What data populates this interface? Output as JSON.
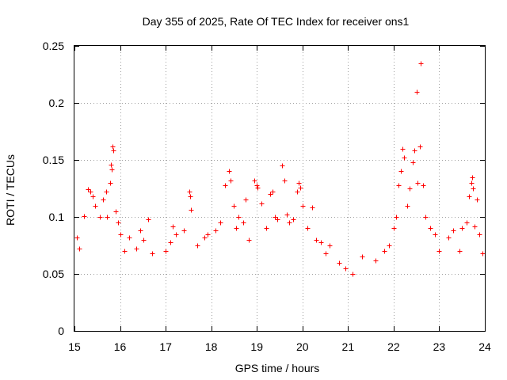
{
  "chart_data": {
    "type": "scatter",
    "title": "Day 355 of 2025, Rate Of TEC Index for receiver ons1",
    "xlabel": "GPS time / hours",
    "ylabel": "ROTI / TECUs",
    "xlim": [
      15,
      24
    ],
    "ylim": [
      0,
      0.25
    ],
    "xticks": [
      15,
      16,
      17,
      18,
      19,
      20,
      21,
      22,
      23,
      24
    ],
    "xtick_labels": [
      "15",
      "16",
      "17",
      "18",
      "19",
      "20",
      "21",
      "22",
      "23",
      "24"
    ],
    "yticks": [
      0,
      0.05,
      0.1,
      0.15,
      0.2,
      0.25
    ],
    "ytick_labels": [
      "0",
      "0.05",
      "0.1",
      "0.15",
      "0.2",
      "0.25"
    ],
    "grid": true,
    "marker": "+",
    "color": "#ff0000",
    "series": [
      {
        "name": "ROTI",
        "points": [
          [
            15.05,
            0.082
          ],
          [
            15.1,
            0.072
          ],
          [
            15.2,
            0.101
          ],
          [
            15.3,
            0.124
          ],
          [
            15.35,
            0.122
          ],
          [
            15.4,
            0.118
          ],
          [
            15.45,
            0.11
          ],
          [
            15.55,
            0.1
          ],
          [
            15.62,
            0.115
          ],
          [
            15.7,
            0.122
          ],
          [
            15.72,
            0.1
          ],
          [
            15.78,
            0.13
          ],
          [
            15.8,
            0.146
          ],
          [
            15.82,
            0.142
          ],
          [
            15.84,
            0.162
          ],
          [
            15.86,
            0.158
          ],
          [
            15.9,
            0.105
          ],
          [
            15.95,
            0.095
          ],
          [
            16.0,
            0.085
          ],
          [
            16.1,
            0.07
          ],
          [
            16.2,
            0.082
          ],
          [
            16.35,
            0.072
          ],
          [
            16.45,
            0.088
          ],
          [
            16.52,
            0.08
          ],
          [
            16.62,
            0.098
          ],
          [
            16.7,
            0.068
          ],
          [
            17.0,
            0.07
          ],
          [
            17.1,
            0.078
          ],
          [
            17.15,
            0.092
          ],
          [
            17.22,
            0.085
          ],
          [
            17.4,
            0.088
          ],
          [
            17.52,
            0.122
          ],
          [
            17.54,
            0.118
          ],
          [
            17.56,
            0.106
          ],
          [
            17.7,
            0.075
          ],
          [
            17.85,
            0.082
          ],
          [
            17.92,
            0.085
          ],
          [
            18.1,
            0.088
          ],
          [
            18.2,
            0.095
          ],
          [
            18.3,
            0.128
          ],
          [
            18.38,
            0.14
          ],
          [
            18.42,
            0.132
          ],
          [
            18.5,
            0.11
          ],
          [
            18.55,
            0.09
          ],
          [
            18.6,
            0.1
          ],
          [
            18.7,
            0.095
          ],
          [
            18.75,
            0.115
          ],
          [
            18.82,
            0.08
          ],
          [
            18.95,
            0.132
          ],
          [
            19.0,
            0.128
          ],
          [
            19.02,
            0.126
          ],
          [
            19.1,
            0.112
          ],
          [
            19.2,
            0.09
          ],
          [
            19.3,
            0.12
          ],
          [
            19.35,
            0.122
          ],
          [
            19.4,
            0.1
          ],
          [
            19.45,
            0.098
          ],
          [
            19.55,
            0.145
          ],
          [
            19.6,
            0.132
          ],
          [
            19.65,
            0.102
          ],
          [
            19.7,
            0.095
          ],
          [
            19.8,
            0.098
          ],
          [
            19.88,
            0.122
          ],
          [
            19.92,
            0.13
          ],
          [
            19.95,
            0.126
          ],
          [
            20.0,
            0.11
          ],
          [
            20.1,
            0.09
          ],
          [
            20.22,
            0.108
          ],
          [
            20.3,
            0.08
          ],
          [
            20.4,
            0.078
          ],
          [
            20.5,
            0.068
          ],
          [
            20.6,
            0.075
          ],
          [
            20.8,
            0.06
          ],
          [
            20.95,
            0.055
          ],
          [
            21.1,
            0.05
          ],
          [
            21.3,
            0.065
          ],
          [
            21.6,
            0.062
          ],
          [
            21.8,
            0.07
          ],
          [
            21.9,
            0.075
          ],
          [
            22.0,
            0.09
          ],
          [
            22.05,
            0.1
          ],
          [
            22.1,
            0.128
          ],
          [
            22.15,
            0.14
          ],
          [
            22.2,
            0.16
          ],
          [
            22.22,
            0.152
          ],
          [
            22.3,
            0.11
          ],
          [
            22.35,
            0.125
          ],
          [
            22.42,
            0.148
          ],
          [
            22.46,
            0.158
          ],
          [
            22.5,
            0.21
          ],
          [
            22.52,
            0.13
          ],
          [
            22.58,
            0.162
          ],
          [
            22.6,
            0.235
          ],
          [
            22.65,
            0.128
          ],
          [
            22.7,
            0.1
          ],
          [
            22.8,
            0.09
          ],
          [
            22.9,
            0.085
          ],
          [
            23.0,
            0.07
          ],
          [
            23.2,
            0.082
          ],
          [
            23.3,
            0.088
          ],
          [
            23.45,
            0.07
          ],
          [
            23.5,
            0.09
          ],
          [
            23.6,
            0.095
          ],
          [
            23.65,
            0.118
          ],
          [
            23.7,
            0.13
          ],
          [
            23.72,
            0.135
          ],
          [
            23.74,
            0.125
          ],
          [
            23.78,
            0.092
          ],
          [
            23.82,
            0.115
          ],
          [
            23.88,
            0.085
          ],
          [
            23.95,
            0.068
          ]
        ]
      }
    ]
  }
}
